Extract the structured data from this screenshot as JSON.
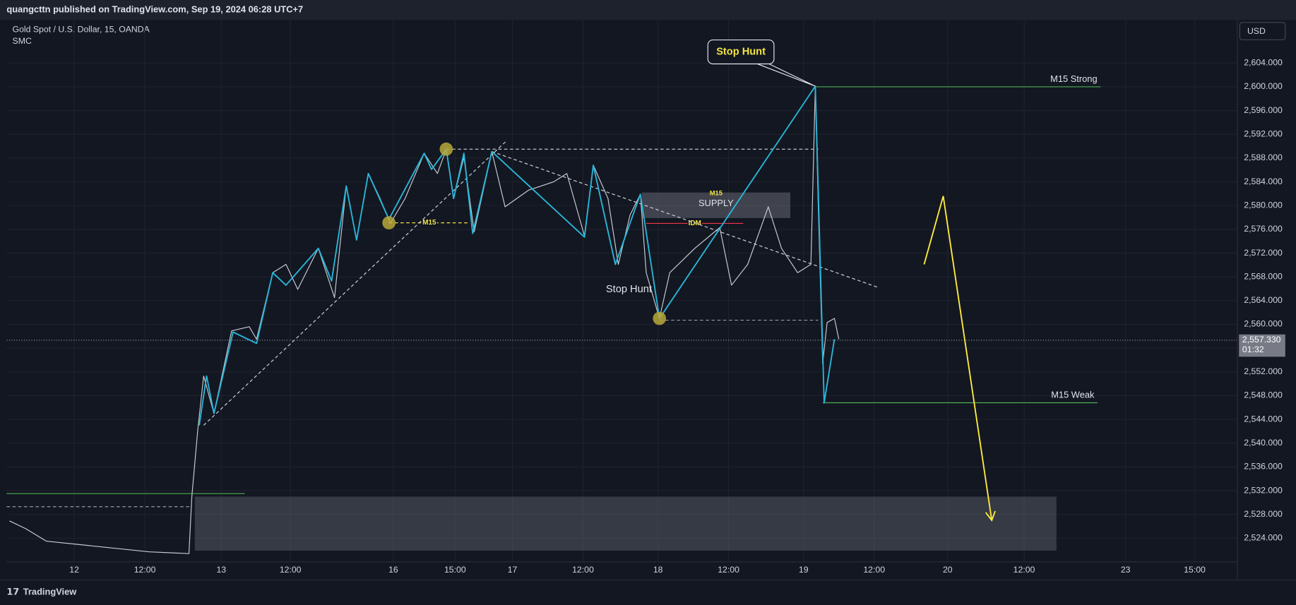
{
  "header": {
    "publisher": "quangcttn published on TradingView.com, Sep 19, 2024 06:28 UTC+7",
    "brand": "TradingView"
  },
  "chart_data": {
    "type": "line",
    "title": "Gold Spot / U.S. Dollar, 15, OANDA",
    "subtitle": "SMC",
    "currency": "USD",
    "grid": true,
    "xlim": [
      -46,
      791
    ],
    "ylim": [
      2520,
      2610.7
    ],
    "xticks": [
      {
        "value": 0,
        "label": "12"
      },
      {
        "value": 48,
        "label": "12:00"
      },
      {
        "value": 100,
        "label": "13"
      },
      {
        "value": 147,
        "label": "12:00"
      },
      {
        "value": 217,
        "label": "16"
      },
      {
        "value": 259,
        "label": "15:00"
      },
      {
        "value": 298,
        "label": "17"
      },
      {
        "value": 346,
        "label": "12:00"
      },
      {
        "value": 397,
        "label": "18"
      },
      {
        "value": 445,
        "label": "12:00"
      },
      {
        "value": 496,
        "label": "19"
      },
      {
        "value": 544,
        "label": "12:00"
      },
      {
        "value": 594,
        "label": "20"
      },
      {
        "value": 646,
        "label": "12:00"
      },
      {
        "value": 715,
        "label": "23"
      },
      {
        "value": 762,
        "label": "15:00"
      }
    ],
    "yticks": [
      {
        "value": 2524,
        "label": "2,524.000"
      },
      {
        "value": 2528,
        "label": "2,528.000"
      },
      {
        "value": 2532,
        "label": "2,532.000"
      },
      {
        "value": 2536,
        "label": "2,536.000"
      },
      {
        "value": 2540,
        "label": "2,540.000"
      },
      {
        "value": 2544,
        "label": "2,544.000"
      },
      {
        "value": 2548,
        "label": "2,548.000"
      },
      {
        "value": 2552,
        "label": "2,552.000"
      },
      {
        "value": 2556,
        "label": "2,556.000"
      },
      {
        "value": 2560,
        "label": "2,560.000"
      },
      {
        "value": 2564,
        "label": "2,564.000"
      },
      {
        "value": 2568,
        "label": "2,568.000"
      },
      {
        "value": 2572,
        "label": "2,572.000"
      },
      {
        "value": 2576,
        "label": "2,576.000"
      },
      {
        "value": 2580,
        "label": "2,580.000"
      },
      {
        "value": 2584,
        "label": "2,584.000"
      },
      {
        "value": 2588,
        "label": "2,588.000"
      },
      {
        "value": 2592,
        "label": "2,592.000"
      },
      {
        "value": 2596,
        "label": "2,596.000"
      },
      {
        "value": 2600,
        "label": "2,600.000"
      },
      {
        "value": 2604,
        "label": "2,604.000"
      }
    ],
    "series": [
      {
        "color": "#c8cbd2",
        "width": 1,
        "x": [
          -44,
          -33,
          -19,
          51,
          78,
          80,
          84,
          88,
          95,
          107,
          119,
          124,
          135,
          144,
          152,
          166,
          177,
          185,
          192,
          200,
          208,
          215,
          225,
          238,
          247,
          253,
          258,
          265,
          272,
          284,
          293,
          309,
          326,
          335,
          347,
          353,
          363,
          370,
          378,
          385,
          389,
          398,
          405,
          422,
          439,
          447,
          458,
          472,
          481,
          492,
          501,
          504,
          506,
          509,
          512,
          517,
          520
        ],
        "values": [
          2526.9,
          2525.6,
          2523.5,
          2521.7,
          2521.4,
          2531.1,
          2542.2,
          2551.3,
          2545.0,
          2558.9,
          2559.6,
          2557.5,
          2568.7,
          2570.1,
          2565.9,
          2572.8,
          2564.5,
          2583.3,
          2574.2,
          2585.4,
          2581.2,
          2577.0,
          2581.2,
          2588.8,
          2585.4,
          2589.5,
          2581.2,
          2588.1,
          2575.6,
          2589.1,
          2579.8,
          2582.6,
          2584.0,
          2585.4,
          2574.9,
          2586.8,
          2581.2,
          2570.1,
          2578.4,
          2581.9,
          2568.7,
          2561.0,
          2568.7,
          2572.8,
          2576.3,
          2566.6,
          2570.1,
          2579.8,
          2572.8,
          2568.7,
          2570.1,
          2600.0,
          2579.8,
          2553.4,
          2560.3,
          2561.0,
          2557.5
        ]
      },
      {
        "color": "#29b6d8",
        "width": 1.6,
        "x": [
          85,
          90,
          95,
          108,
          124,
          135,
          144,
          166,
          175,
          185,
          192,
          200,
          214,
          238,
          243,
          253,
          258,
          265,
          271,
          284,
          347,
          353,
          368,
          385,
          398,
          504,
          510,
          517
        ],
        "values": [
          2543.0,
          2551.3,
          2545.0,
          2558.7,
          2556.8,
          2568.7,
          2566.6,
          2572.8,
          2567.3,
          2583.3,
          2574.2,
          2585.4,
          2577.7,
          2588.8,
          2586.1,
          2589.5,
          2581.2,
          2588.8,
          2575.3,
          2589.1,
          2574.7,
          2586.8,
          2570.1,
          2581.9,
          2561.0,
          2600.1,
          2546.8,
          2557.5
        ]
      }
    ],
    "last_price": {
      "value": 2557.33,
      "label": "2,557.330",
      "countdown": "01:32"
    },
    "zones": [
      {
        "x": [
          82,
          668
        ],
        "y": [
          2521.9,
          2531.0
        ],
        "color": "rgba(120,123,134,0.35)"
      },
      {
        "title": "M15",
        "label": "SUPPLY",
        "x": [
          386,
          487
        ],
        "y": [
          2577.9,
          2582.2
        ],
        "color": "rgba(120,123,134,0.45)"
      }
    ],
    "levels": [
      {
        "label": "M15 Strong",
        "y": 2600.0,
        "x": [
          504,
          698
        ],
        "color": "#4caf50",
        "dashed": false
      },
      {
        "label": "M15 Weak",
        "y": 2546.8,
        "x": [
          509,
          696
        ],
        "color": "#4caf50",
        "dashed": false
      },
      {
        "y": 2531.5,
        "x": [
          -46,
          116
        ],
        "color": "#4caf50",
        "dashed": false
      },
      {
        "y": 2529.3,
        "x": [
          -46,
          80
        ],
        "color": "#9598a1",
        "dashed": true
      },
      {
        "label": "IDM",
        "y": 2577.0,
        "x": [
          389,
          455
        ],
        "color": "#f23645",
        "dashed": false
      },
      {
        "label": "M15",
        "y": 2577.1,
        "x": [
          214,
          269
        ],
        "color": "#f2e442",
        "dashed": true
      },
      {
        "y": 2589.5,
        "x": [
          253,
          506
        ],
        "color": "#d1d4dc",
        "dashed": true
      },
      {
        "y": 2560.7,
        "x": [
          398,
          506
        ],
        "color": "#9598a1",
        "dashed": true
      }
    ],
    "trendlines": [
      {
        "x": [
          88,
          294
        ],
        "y": [
          2543.0,
          2590.9
        ]
      },
      {
        "x": [
          284,
          547
        ],
        "y": [
          2589.1,
          2566.2
        ]
      }
    ],
    "points": {
      "x": [
        253,
        214,
        398
      ],
      "y": [
        2589.5,
        2577.1,
        2561.0
      ],
      "color": "#b8a93a"
    },
    "arrow": {
      "x": [
        578,
        591,
        624
      ],
      "y": [
        2570.1,
        2581.6,
        2527.0
      ],
      "color": "#ffeb3b"
    },
    "callouts": [
      {
        "label": "Stop Hunt",
        "x": 504,
        "y": 2600.1,
        "boxed": true
      },
      {
        "label": "Stop Hunt",
        "x": 398,
        "y": 2561.0,
        "boxed": false
      }
    ]
  }
}
